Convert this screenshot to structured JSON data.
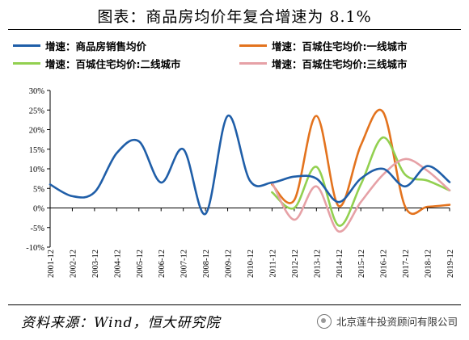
{
  "title": "图表：商品房均价年复合增速为 8.1%",
  "source": "资料来源：Wind，恒大研究院",
  "watermark": "北京莲牛投资顾问有限公司",
  "chart_data": {
    "type": "line",
    "x": [
      "2001-12",
      "2002-12",
      "2003-12",
      "2004-12",
      "2005-12",
      "2006-12",
      "2007-12",
      "2008-12",
      "2009-12",
      "2010-12",
      "2011-12",
      "2012-12",
      "2013-12",
      "2014-12",
      "2015-12",
      "2016-12",
      "2017-12",
      "2018-12",
      "2019-12"
    ],
    "yticks": [
      "30%",
      "25%",
      "20%",
      "15%",
      "10%",
      "5%",
      "0%",
      "-5%",
      "-10%"
    ],
    "ylim": [
      -10,
      30
    ],
    "legend_placement": "top",
    "series": [
      {
        "name": "增速：商品房销售均价",
        "color": "#1f5ea8",
        "values": [
          6,
          3,
          4,
          14,
          17,
          6.5,
          15,
          -1.5,
          23.5,
          7,
          6.5,
          8,
          7.5,
          1.5,
          7.5,
          10,
          5.5,
          10.7,
          6.6
        ]
      },
      {
        "name": "增速：百城住宅均价:一线城市",
        "color": "#e3731e",
        "values": [
          null,
          null,
          null,
          null,
          null,
          null,
          null,
          null,
          null,
          null,
          6,
          2,
          23.5,
          0.5,
          16,
          24.5,
          0.3,
          0.3,
          0.8
        ]
      },
      {
        "name": "增速：百城住宅均价:二线城市",
        "color": "#92d050",
        "values": [
          null,
          null,
          null,
          null,
          null,
          null,
          null,
          null,
          null,
          null,
          4,
          0,
          10.5,
          -4.5,
          6,
          18,
          8.5,
          7,
          4.5
        ]
      },
      {
        "name": "增速：百城住宅均价:三线城市",
        "color": "#e6a1a6",
        "values": [
          null,
          null,
          null,
          null,
          null,
          null,
          null,
          null,
          null,
          null,
          6.5,
          -3,
          5.5,
          -6,
          1.5,
          8.5,
          12.5,
          9.5,
          4.5
        ]
      }
    ]
  }
}
